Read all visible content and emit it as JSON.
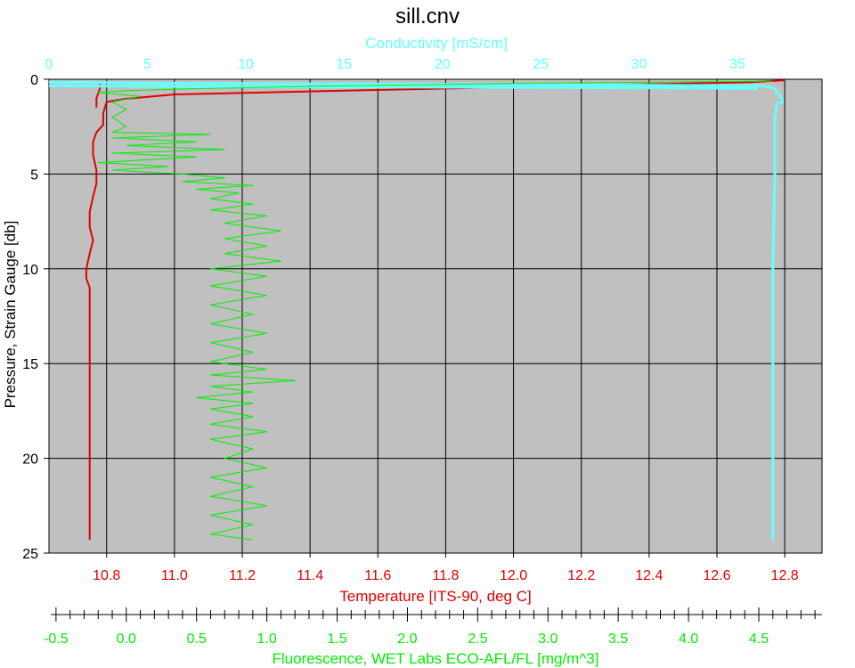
{
  "chart_data": {
    "type": "line",
    "title": "sill.cnv",
    "ylabel": "Pressure, Strain Gauge [db]",
    "ylim": [
      0,
      25
    ],
    "y_inverted": true,
    "y_ticks": [
      0,
      5,
      10,
      15,
      20,
      25
    ],
    "grid": true,
    "axes": {
      "temperature": {
        "label": "Temperature [ITS-90, deg C]",
        "position": "bottom",
        "range": [
          10.63,
          12.91
        ],
        "ticks": [
          10.8,
          11.0,
          11.2,
          11.4,
          11.6,
          11.8,
          12.0,
          12.2,
          12.4,
          12.6,
          12.8
        ],
        "tick_labels": [
          "10.8",
          "11.0",
          "11.2",
          "11.4",
          "11.6",
          "11.8",
          "12.0",
          "12.2",
          "12.4",
          "12.6",
          "12.8"
        ],
        "color": "#e00000"
      },
      "conductivity": {
        "label": "Conductivity [mS/cm]",
        "position": "top",
        "range": [
          0,
          39.3
        ],
        "ticks": [
          0,
          5,
          10,
          15,
          20,
          25,
          30,
          35
        ],
        "tick_labels": [
          "0",
          "5",
          "10",
          "15",
          "20",
          "25",
          "30",
          "35"
        ],
        "color": "#66ffff"
      },
      "fluorescence": {
        "label": "Fluorescence, WET Labs ECO-AFL/FL [mg/m^3]",
        "position": "bottom-secondary",
        "range": [
          -0.55,
          4.95
        ],
        "ticks": [
          -0.5,
          0.0,
          0.5,
          1.0,
          1.5,
          2.0,
          2.5,
          3.0,
          3.5,
          4.0,
          4.5
        ],
        "tick_labels": [
          "-0.5",
          "0.0",
          "0.5",
          "1.0",
          "1.5",
          "2.0",
          "2.5",
          "3.0",
          "3.5",
          "4.0",
          "4.5"
        ],
        "color": "#00ee00"
      }
    },
    "series": [
      {
        "axis": "temperature",
        "color": "#e00000",
        "points": [
          [
            12.8,
            0.05
          ],
          [
            12.7,
            0.15
          ],
          [
            12.3,
            0.3
          ],
          [
            11.9,
            0.45
          ],
          [
            11.5,
            0.6
          ],
          [
            11.0,
            0.8
          ],
          [
            10.85,
            1.05
          ],
          [
            10.8,
            1.2
          ],
          [
            10.79,
            1.8
          ],
          [
            10.79,
            2.4
          ],
          [
            10.77,
            2.8
          ],
          [
            10.76,
            3.3
          ],
          [
            10.76,
            4.0
          ],
          [
            10.77,
            4.8
          ],
          [
            10.77,
            5.5
          ],
          [
            10.76,
            6.2
          ],
          [
            10.75,
            7.0
          ],
          [
            10.75,
            7.8
          ],
          [
            10.76,
            8.5
          ],
          [
            10.75,
            9.2
          ],
          [
            10.74,
            10.0
          ],
          [
            10.74,
            10.5
          ],
          [
            10.75,
            11.0
          ],
          [
            10.75,
            12.0
          ],
          [
            10.75,
            13.5
          ],
          [
            10.75,
            15.0
          ],
          [
            10.75,
            17.0
          ],
          [
            10.75,
            19.0
          ],
          [
            10.75,
            21.0
          ],
          [
            10.75,
            23.0
          ],
          [
            10.75,
            24.3
          ]
        ]
      },
      {
        "axis": "temperature",
        "color": "#e00000",
        "points": [
          [
            10.78,
            0.2
          ],
          [
            10.78,
            0.5
          ],
          [
            10.77,
            1.0
          ],
          [
            10.77,
            1.5
          ]
        ]
      },
      {
        "axis": "conductivity",
        "color": "#66ffff",
        "points": [
          [
            0,
            0.15
          ],
          [
            5,
            0.2
          ],
          [
            15,
            0.25
          ],
          [
            25,
            0.3
          ],
          [
            33,
            0.33
          ],
          [
            36.3,
            0.35
          ],
          [
            36.9,
            0.5
          ],
          [
            37.0,
            0.7
          ],
          [
            37.2,
            0.9
          ],
          [
            37.3,
            1.2
          ],
          [
            37.0,
            1.3
          ],
          [
            36.9,
            2.0
          ],
          [
            36.9,
            5.0
          ],
          [
            36.8,
            10.0
          ],
          [
            36.8,
            15.0
          ],
          [
            36.8,
            20.0
          ],
          [
            36.8,
            24.3
          ]
        ]
      },
      {
        "axis": "conductivity",
        "color": "#66ffff",
        "points": [
          [
            0,
            0.35
          ],
          [
            10,
            0.4
          ],
          [
            20,
            0.42
          ],
          [
            30,
            0.45
          ],
          [
            36,
            0.48
          ]
        ]
      },
      {
        "axis": "fluorescence",
        "color": "#00ee00",
        "points": [
          [
            4.6,
            0.1
          ],
          [
            3.0,
            0.2
          ],
          [
            1.5,
            0.35
          ],
          [
            0.5,
            0.5
          ],
          [
            0.0,
            0.6
          ],
          [
            -0.2,
            0.7
          ],
          [
            0.1,
            0.9
          ],
          [
            -0.1,
            1.2
          ],
          [
            0.0,
            1.6
          ],
          [
            -0.1,
            2.0
          ],
          [
            0.0,
            2.5
          ],
          [
            -0.1,
            2.8
          ],
          [
            0.6,
            2.9
          ],
          [
            -0.1,
            3.1
          ],
          [
            0.5,
            3.3
          ],
          [
            0.0,
            3.5
          ],
          [
            0.7,
            3.7
          ],
          [
            -0.1,
            3.9
          ],
          [
            0.5,
            4.1
          ],
          [
            -0.2,
            4.4
          ],
          [
            0.3,
            4.6
          ],
          [
            -0.1,
            4.8
          ],
          [
            0.4,
            5.0
          ],
          [
            0.7,
            5.2
          ],
          [
            0.4,
            5.4
          ],
          [
            0.9,
            5.6
          ],
          [
            0.5,
            5.8
          ],
          [
            0.8,
            6.0
          ],
          [
            0.6,
            6.3
          ],
          [
            0.9,
            6.6
          ],
          [
            0.6,
            6.9
          ],
          [
            1.0,
            7.2
          ],
          [
            0.7,
            7.6
          ],
          [
            1.1,
            8.0
          ],
          [
            0.7,
            8.4
          ],
          [
            1.0,
            8.8
          ],
          [
            0.7,
            9.2
          ],
          [
            1.1,
            9.6
          ],
          [
            0.6,
            10.0
          ],
          [
            1.0,
            10.4
          ],
          [
            0.6,
            10.9
          ],
          [
            1.0,
            11.4
          ],
          [
            0.6,
            11.9
          ],
          [
            0.9,
            12.4
          ],
          [
            0.6,
            12.9
          ],
          [
            1.0,
            13.4
          ],
          [
            0.6,
            13.9
          ],
          [
            0.9,
            14.4
          ],
          [
            0.6,
            14.9
          ],
          [
            1.0,
            15.3
          ],
          [
            0.6,
            15.6
          ],
          [
            1.2,
            15.9
          ],
          [
            0.6,
            16.2
          ],
          [
            0.9,
            16.5
          ],
          [
            0.5,
            16.8
          ],
          [
            0.9,
            17.1
          ],
          [
            0.6,
            17.4
          ],
          [
            0.9,
            17.8
          ],
          [
            0.6,
            18.2
          ],
          [
            1.0,
            18.6
          ],
          [
            0.6,
            19.0
          ],
          [
            0.9,
            19.5
          ],
          [
            0.7,
            20.0
          ],
          [
            1.0,
            20.5
          ],
          [
            0.6,
            21.0
          ],
          [
            0.9,
            21.5
          ],
          [
            0.6,
            22.0
          ],
          [
            1.0,
            22.5
          ],
          [
            0.6,
            23.0
          ],
          [
            0.9,
            23.5
          ],
          [
            0.6,
            24.0
          ],
          [
            0.9,
            24.3
          ]
        ]
      }
    ]
  }
}
